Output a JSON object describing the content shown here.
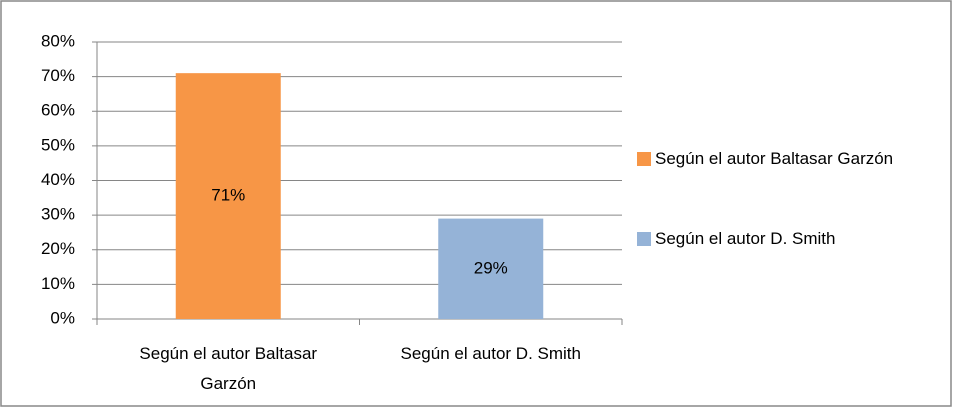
{
  "chart_data": {
    "type": "bar",
    "categories": [
      "Según el autor Baltasar Garzón",
      "Según el autor D. Smith"
    ],
    "values": [
      71,
      29
    ],
    "value_labels": [
      "71%",
      "29%"
    ],
    "colors": [
      "#f79646",
      "#95b3d7"
    ],
    "ylim": [
      0,
      80
    ],
    "yticks": [
      {
        "value": 0,
        "label": "0%"
      },
      {
        "value": 10,
        "label": "10%"
      },
      {
        "value": 20,
        "label": "20%"
      },
      {
        "value": 30,
        "label": "30%"
      },
      {
        "value": 40,
        "label": "40%"
      },
      {
        "value": 50,
        "label": "50%"
      },
      {
        "value": 60,
        "label": "60%"
      },
      {
        "value": 70,
        "label": "70%"
      },
      {
        "value": 80,
        "label": "80%"
      }
    ],
    "grid": true,
    "legend": "right"
  }
}
